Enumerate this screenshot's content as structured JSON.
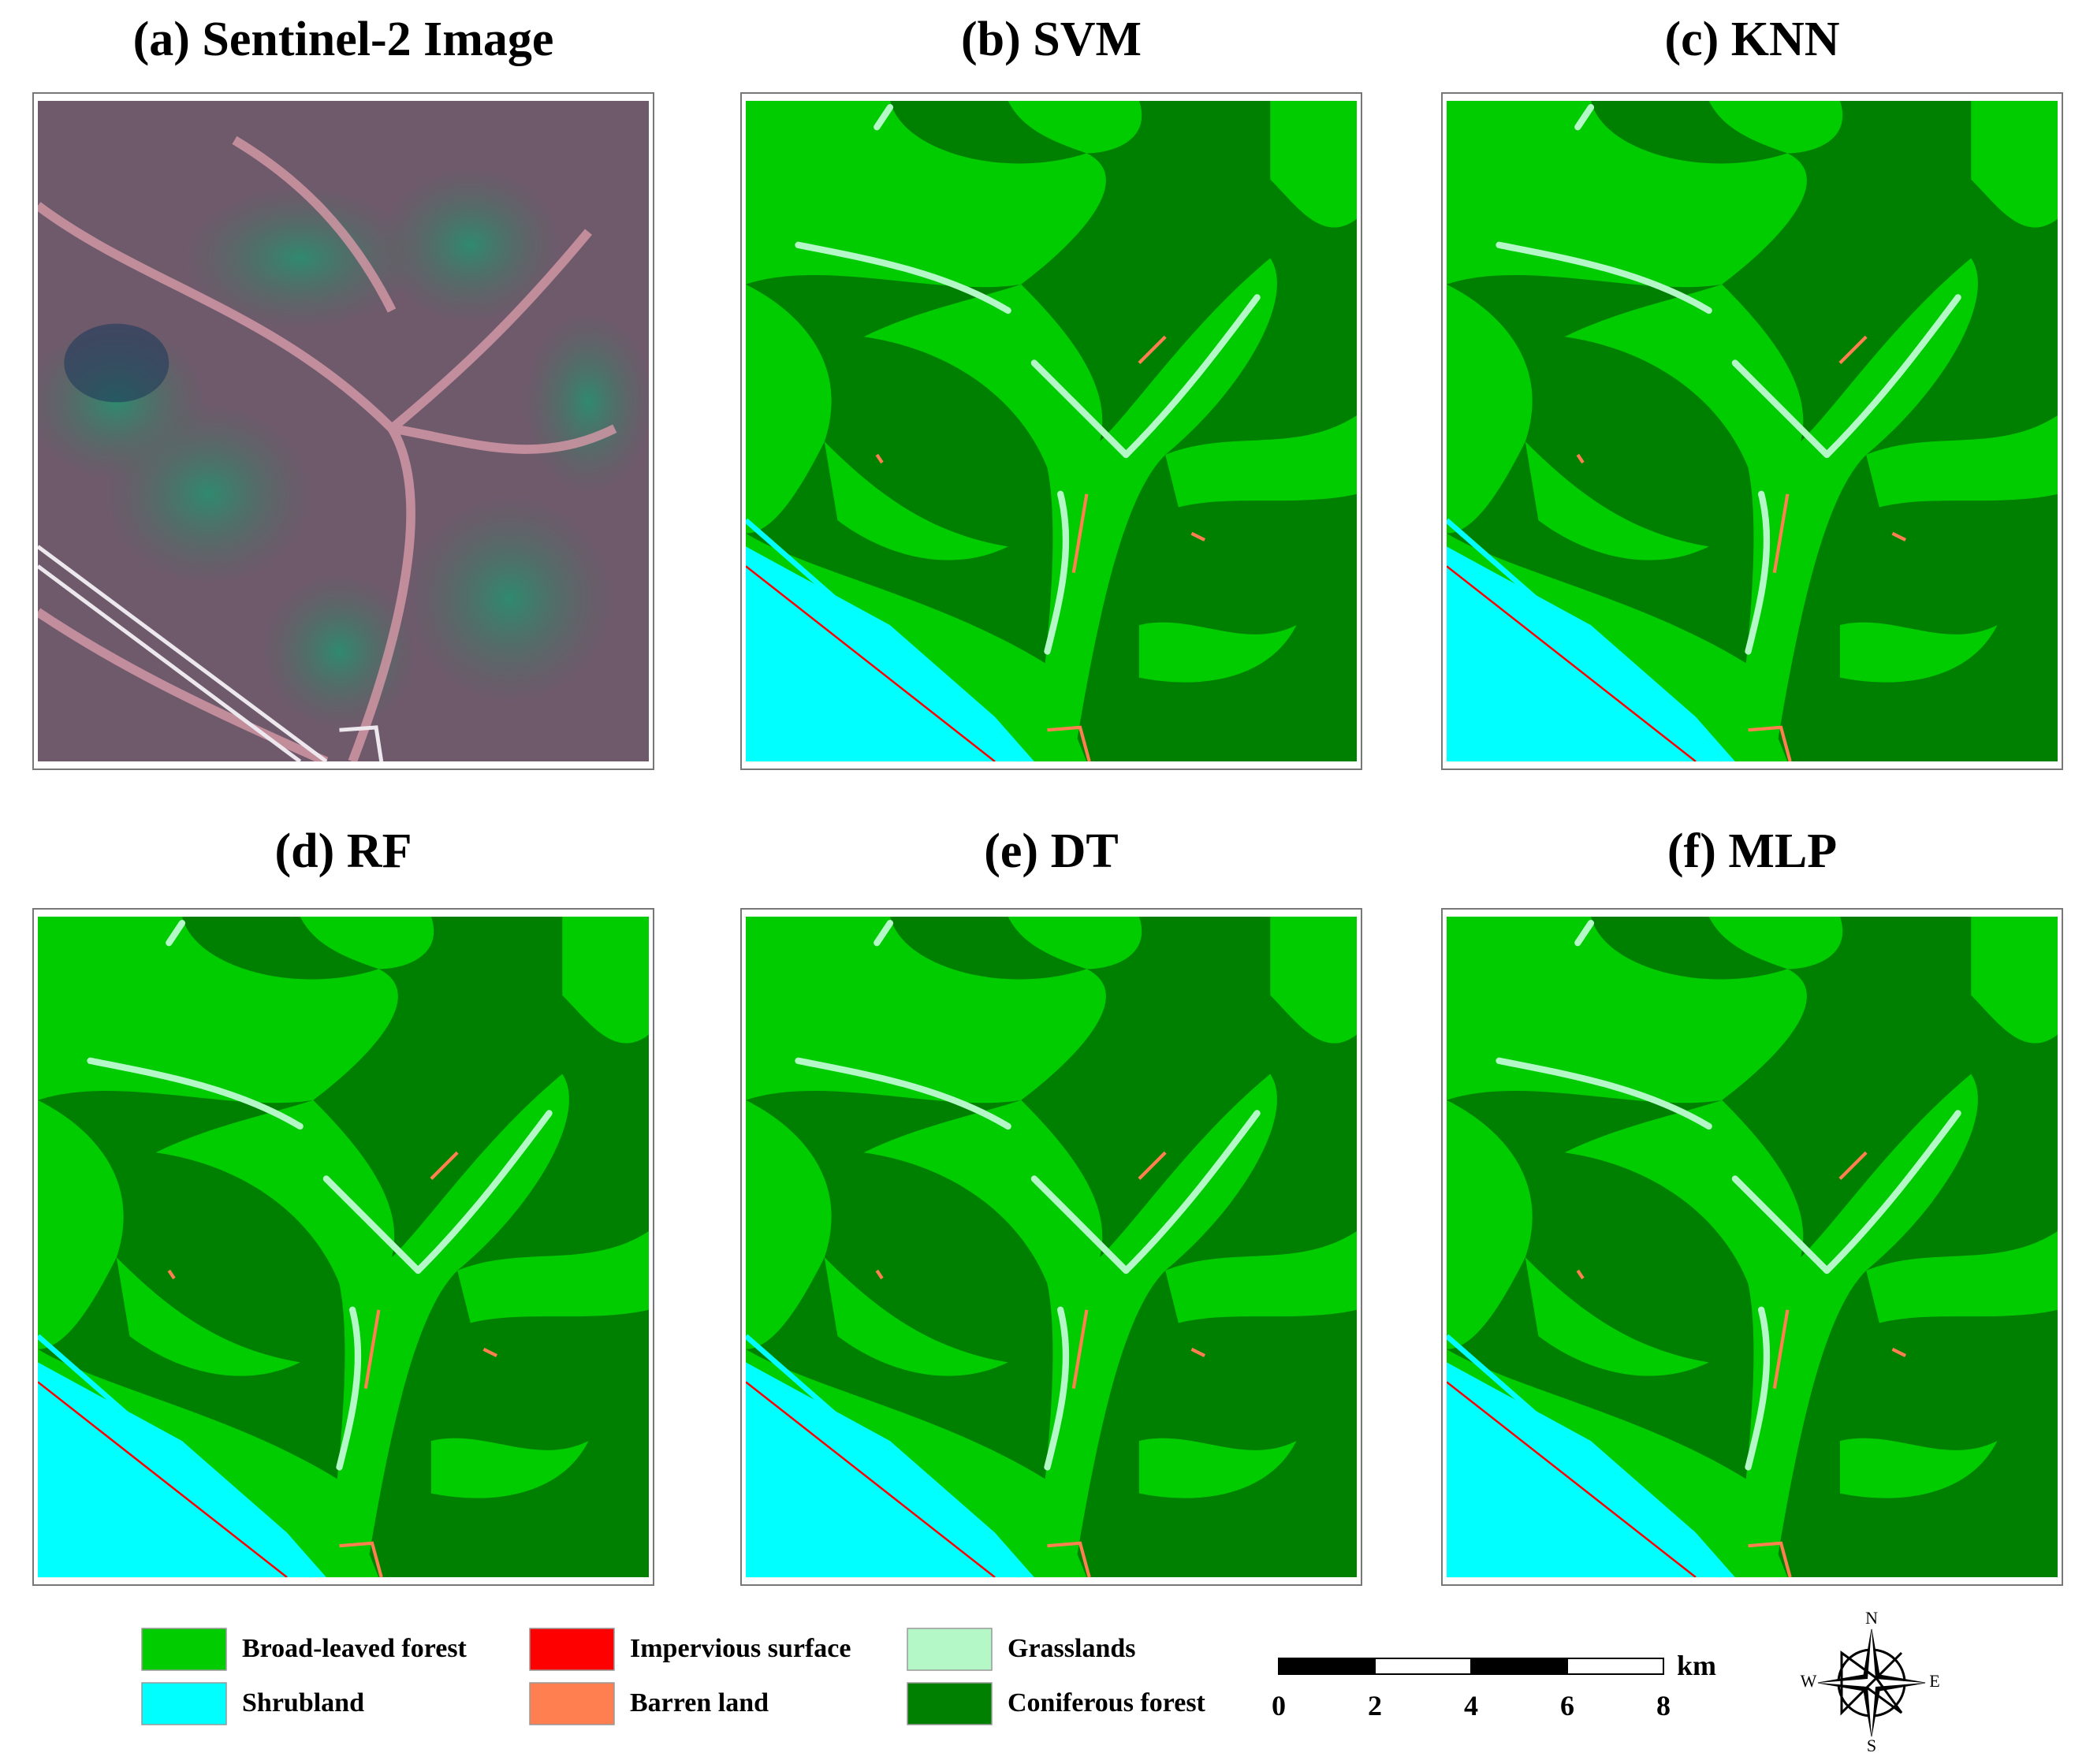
{
  "panels": [
    {
      "title": "(a) Sentinel-2 Image"
    },
    {
      "title": "(b) SVM"
    },
    {
      "title": "(c) KNN"
    },
    {
      "title": "(d) RF"
    },
    {
      "title": "(e) DT"
    },
    {
      "title": "(f) MLP"
    }
  ],
  "legend": [
    {
      "label": "Broad-leaved forest",
      "color": "#00cc00"
    },
    {
      "label": "Shrubland",
      "color": "#00ffff"
    },
    {
      "label": "Impervious surface",
      "color": "#ff0000"
    },
    {
      "label": "Barren land",
      "color": "#ff7f50"
    },
    {
      "label": "Grasslands",
      "color": "#b4f8c8"
    },
    {
      "label": "Coniferous forest",
      "color": "#008000"
    }
  ],
  "scale_bar": {
    "ticks": [
      0,
      2,
      4,
      6,
      8
    ],
    "unit": "km"
  },
  "compass": {
    "north": "N",
    "east": "E",
    "south": "S",
    "west": "W"
  }
}
